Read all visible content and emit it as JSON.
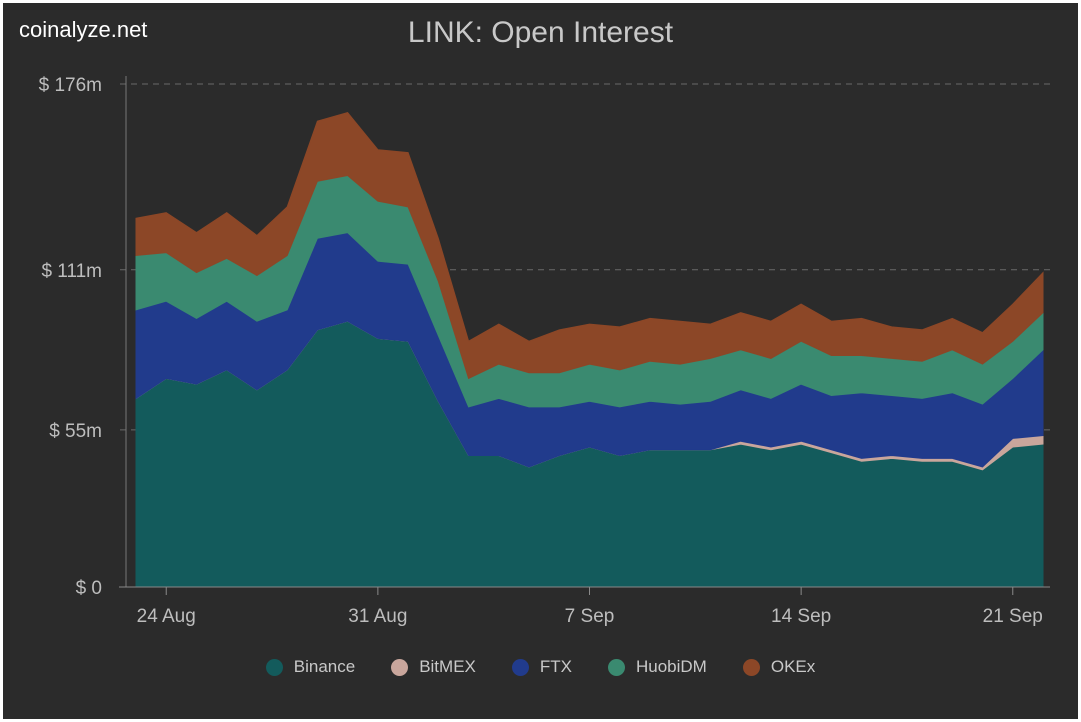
{
  "brand": "coinalyze.net",
  "chart_data": {
    "type": "area",
    "stacked": true,
    "title": "LINK: Open Interest",
    "x": [
      "23 Aug",
      "24 Aug",
      "25 Aug",
      "26 Aug",
      "27 Aug",
      "28 Aug",
      "29 Aug",
      "30 Aug",
      "31 Aug",
      "1 Sep",
      "2 Sep",
      "3 Sep",
      "4 Sep",
      "5 Sep",
      "6 Sep",
      "7 Sep",
      "8 Sep",
      "9 Sep",
      "10 Sep",
      "11 Sep",
      "12 Sep",
      "13 Sep",
      "14 Sep",
      "15 Sep",
      "16 Sep",
      "17 Sep",
      "18 Sep",
      "19 Sep",
      "20 Sep",
      "21 Sep",
      "22 Sep"
    ],
    "x_ticks": [
      "24 Aug",
      "31 Aug",
      "7 Sep",
      "14 Sep",
      "21 Sep"
    ],
    "y_ticks": [
      "$ 0",
      "$ 55m",
      "$ 111m",
      "$ 176m"
    ],
    "y_tick_values": [
      0,
      55,
      111,
      176
    ],
    "ylim": [
      0,
      176
    ],
    "unit": "million USD",
    "grid": true,
    "legend_position": "bottom",
    "series": [
      {
        "name": "Binance",
        "color": "#135b5c",
        "values": [
          66,
          73,
          71,
          76,
          69,
          76,
          90,
          93,
          87,
          86,
          65,
          46,
          46,
          42,
          46,
          49,
          46,
          48,
          48,
          48,
          50,
          48,
          50,
          47,
          44,
          45,
          44,
          44,
          41,
          49,
          50
        ]
      },
      {
        "name": "BitMEX",
        "color": "#c9a69c",
        "values": [
          0,
          0,
          0,
          0,
          0,
          0,
          0,
          0,
          0,
          0,
          0,
          0,
          0,
          0,
          0,
          0,
          0,
          0,
          0,
          0,
          1,
          1,
          1,
          1,
          1,
          1,
          1,
          1,
          1,
          3,
          3
        ]
      },
      {
        "name": "FTX",
        "color": "#213b8c",
        "values": [
          31,
          27,
          23,
          24,
          24,
          21,
          32,
          31,
          27,
          27,
          23,
          17,
          20,
          21,
          17,
          16,
          17,
          17,
          16,
          17,
          18,
          17,
          20,
          19,
          23,
          21,
          21,
          23,
          22,
          21,
          30
        ]
      },
      {
        "name": "HuobiDM",
        "color": "#3a8a70",
        "values": [
          19,
          17,
          16,
          15,
          16,
          19,
          20,
          20,
          21,
          20,
          19,
          10,
          12,
          12,
          12,
          13,
          13,
          14,
          14,
          15,
          14,
          14,
          15,
          14,
          13,
          13,
          13,
          15,
          14,
          13,
          13
        ]
      },
      {
        "name": "OKEx",
        "color": "#8c4727",
        "values": [
          13,
          14,
          14,
          16,
          14,
          17,
          21,
          22,
          18,
          19,
          15,
          13,
          14,
          11,
          15,
          14,
          15,
          15,
          15,
          12,
          13,
          13,
          13,
          12,
          13,
          11,
          11,
          11,
          11,
          13,
          14
        ]
      }
    ]
  }
}
